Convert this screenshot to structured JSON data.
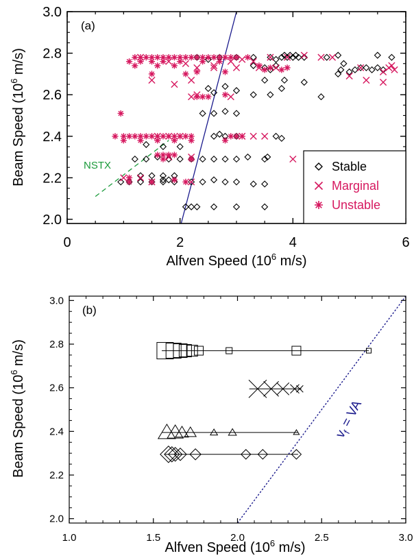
{
  "colors": {
    "stable": "#000000",
    "marginal": "#d6185f",
    "unstable": "#d6185f",
    "nstx": "#1a9a3a",
    "vf_line": "#1a1a8c",
    "axis": "#000000"
  },
  "chart_data": [
    {
      "panel": "(a)",
      "type": "scatter",
      "xlabel": "Alfven Speed (10",
      "xlabel_sup": "6",
      "xlabel_tail": " m/s)",
      "ylabel": "Beam Speed (10",
      "ylabel_sup": "6",
      "ylabel_tail": " m/s)",
      "xlim": [
        0,
        6
      ],
      "ylim": [
        1.98,
        3.0
      ],
      "xticks": [
        "0",
        "2",
        "4",
        "6"
      ],
      "yticks": [
        "2.0",
        "2.2",
        "2.4",
        "2.6",
        "2.8",
        "3.0"
      ],
      "legend": {
        "placement": "bottom-right",
        "entries": [
          "Stable",
          "Marginal",
          "Unstable"
        ]
      },
      "annotation": "NSTX",
      "nstx_line": [
        [
          0.5,
          2.11
        ],
        [
          1.8,
          2.38
        ]
      ],
      "vf_line": [
        [
          2.02,
          1.98
        ],
        [
          3.0,
          3.0
        ]
      ],
      "series": [
        {
          "name": "Stable",
          "marker": "diamond",
          "points": [
            [
              2.3,
              2.78
            ],
            [
              2.5,
              2.77
            ],
            [
              2.7,
              2.78
            ],
            [
              3.0,
              2.78
            ],
            [
              3.3,
              2.78
            ],
            [
              3.6,
              2.78
            ],
            [
              3.7,
              2.77
            ],
            [
              3.8,
              2.78
            ],
            [
              3.85,
              2.79
            ],
            [
              3.9,
              2.78
            ],
            [
              3.95,
              2.79
            ],
            [
              4.0,
              2.78
            ],
            [
              4.05,
              2.79
            ],
            [
              4.1,
              2.78
            ],
            [
              4.2,
              2.78
            ],
            [
              4.6,
              2.78
            ],
            [
              4.8,
              2.79
            ],
            [
              4.9,
              2.75
            ],
            [
              5.0,
              2.71
            ],
            [
              5.1,
              2.72
            ],
            [
              5.2,
              2.73
            ],
            [
              5.3,
              2.73
            ],
            [
              5.4,
              2.72
            ],
            [
              5.5,
              2.73
            ],
            [
              5.6,
              2.72
            ],
            [
              5.75,
              2.78
            ],
            [
              5.5,
              2.79
            ],
            [
              3.3,
              2.74
            ],
            [
              3.5,
              2.73
            ],
            [
              3.6,
              2.72
            ],
            [
              3.7,
              2.74
            ],
            [
              3.5,
              2.67
            ],
            [
              3.85,
              2.67
            ],
            [
              4.2,
              2.66
            ],
            [
              2.5,
              2.63
            ],
            [
              2.6,
              2.61
            ],
            [
              2.8,
              2.64
            ],
            [
              3.0,
              2.62
            ],
            [
              3.3,
              2.6
            ],
            [
              3.6,
              2.6
            ],
            [
              3.8,
              2.63
            ],
            [
              4.8,
              2.7
            ],
            [
              4.85,
              2.72
            ],
            [
              4.5,
              2.59
            ],
            [
              2.4,
              2.51
            ],
            [
              2.6,
              2.51
            ],
            [
              2.8,
              2.52
            ],
            [
              3.0,
              2.51
            ],
            [
              2.6,
              2.4
            ],
            [
              2.7,
              2.41
            ],
            [
              2.8,
              2.4
            ],
            [
              3.0,
              2.4
            ],
            [
              3.7,
              2.4
            ],
            [
              3.8,
              2.39
            ],
            [
              1.4,
              2.36
            ],
            [
              1.7,
              2.35
            ],
            [
              2.0,
              2.35
            ],
            [
              1.2,
              2.29
            ],
            [
              1.4,
              2.29
            ],
            [
              1.6,
              2.3
            ],
            [
              1.8,
              2.29
            ],
            [
              2.0,
              2.29
            ],
            [
              2.2,
              2.29
            ],
            [
              2.4,
              2.29
            ],
            [
              2.6,
              2.29
            ],
            [
              2.8,
              2.29
            ],
            [
              3.0,
              2.29
            ],
            [
              3.2,
              2.3
            ],
            [
              3.5,
              2.29
            ],
            [
              3.55,
              2.3
            ],
            [
              0.95,
              2.18
            ],
            [
              1.1,
              2.18
            ],
            [
              1.3,
              2.18
            ],
            [
              1.5,
              2.18
            ],
            [
              1.7,
              2.18
            ],
            [
              1.9,
              2.18
            ],
            [
              2.2,
              2.18
            ],
            [
              2.4,
              2.18
            ],
            [
              2.6,
              2.19
            ],
            [
              2.8,
              2.18
            ],
            [
              3.0,
              2.18
            ],
            [
              3.3,
              2.17
            ],
            [
              3.5,
              2.17
            ],
            [
              1.3,
              2.21
            ],
            [
              1.5,
              2.21
            ],
            [
              1.7,
              2.21
            ],
            [
              1.9,
              2.21
            ],
            [
              1.7,
              2.19
            ],
            [
              1.8,
              2.19
            ],
            [
              2.1,
              2.06
            ],
            [
              2.2,
              2.06
            ],
            [
              2.3,
              2.06
            ],
            [
              2.6,
              2.06
            ],
            [
              3.0,
              2.06
            ],
            [
              3.5,
              2.06
            ]
          ]
        },
        {
          "name": "Marginal",
          "marker": "x",
          "points": [
            [
              1.3,
              2.78
            ],
            [
              1.8,
              2.76
            ],
            [
              2.1,
              2.75
            ],
            [
              2.3,
              2.73
            ],
            [
              2.6,
              2.74
            ],
            [
              2.9,
              2.76
            ],
            [
              3.1,
              2.77
            ],
            [
              3.3,
              2.76
            ],
            [
              3.6,
              2.78
            ],
            [
              4.5,
              2.78
            ],
            [
              4.7,
              2.78
            ],
            [
              5.2,
              2.73
            ],
            [
              5.6,
              2.71
            ],
            [
              5.7,
              2.73
            ],
            [
              5.8,
              2.72
            ],
            [
              5.75,
              2.74
            ],
            [
              5.0,
              2.69
            ],
            [
              5.3,
              2.67
            ],
            [
              5.6,
              2.66
            ],
            [
              2.9,
              2.59
            ],
            [
              2.2,
              2.59
            ],
            [
              2.3,
              2.6
            ],
            [
              3.1,
              2.4
            ],
            [
              3.3,
              2.4
            ],
            [
              3.5,
              2.4
            ],
            [
              1.6,
              2.4
            ],
            [
              1.8,
              2.4
            ],
            [
              2.0,
              2.4
            ],
            [
              1.8,
              2.3
            ],
            [
              2.2,
              2.3
            ],
            [
              4.0,
              2.29
            ],
            [
              1.0,
              2.2
            ],
            [
              1.3,
              2.2
            ],
            [
              1.5,
              2.18
            ],
            [
              2.2,
              2.18
            ],
            [
              1.5,
              2.67
            ],
            [
              1.9,
              2.65
            ],
            [
              2.2,
              2.67
            ],
            [
              2.6,
              2.73
            ],
            [
              3.0,
              2.73
            ],
            [
              3.4,
              2.73
            ],
            [
              3.7,
              2.73
            ],
            [
              3.9,
              2.78
            ],
            [
              4.2,
              2.79
            ]
          ]
        },
        {
          "name": "Unstable",
          "marker": "asterisk",
          "points": [
            [
              1.2,
              2.78
            ],
            [
              1.3,
              2.78
            ],
            [
              1.4,
              2.78
            ],
            [
              1.5,
              2.78
            ],
            [
              1.6,
              2.78
            ],
            [
              1.7,
              2.78
            ],
            [
              1.8,
              2.78
            ],
            [
              1.9,
              2.78
            ],
            [
              2.0,
              2.78
            ],
            [
              2.1,
              2.78
            ],
            [
              2.2,
              2.78
            ],
            [
              2.3,
              2.78
            ],
            [
              2.4,
              2.78
            ],
            [
              2.5,
              2.78
            ],
            [
              2.6,
              2.78
            ],
            [
              2.7,
              2.78
            ],
            [
              2.8,
              2.78
            ],
            [
              2.9,
              2.78
            ],
            [
              3.0,
              2.78
            ],
            [
              3.2,
              2.78
            ],
            [
              1.1,
              2.76
            ],
            [
              1.3,
              2.76
            ],
            [
              1.5,
              2.76
            ],
            [
              1.7,
              2.76
            ],
            [
              2.0,
              2.76
            ],
            [
              2.4,
              2.76
            ],
            [
              2.7,
              2.76
            ],
            [
              1.2,
              2.74
            ],
            [
              1.6,
              2.74
            ],
            [
              1.9,
              2.74
            ],
            [
              3.4,
              2.74
            ],
            [
              3.6,
              2.73
            ],
            [
              3.8,
              2.72
            ],
            [
              3.9,
              2.73
            ],
            [
              3.5,
              2.72
            ],
            [
              2.3,
              2.71
            ],
            [
              2.8,
              2.71
            ],
            [
              1.5,
              2.7
            ],
            [
              2.1,
              2.7
            ],
            [
              2.3,
              2.59
            ],
            [
              2.4,
              2.59
            ],
            [
              2.5,
              2.59
            ],
            [
              2.8,
              2.6
            ],
            [
              0.95,
              2.51
            ],
            [
              0.85,
              2.4
            ],
            [
              1.0,
              2.4
            ],
            [
              1.1,
              2.4
            ],
            [
              1.2,
              2.4
            ],
            [
              1.3,
              2.4
            ],
            [
              1.4,
              2.4
            ],
            [
              1.5,
              2.4
            ],
            [
              1.6,
              2.4
            ],
            [
              1.7,
              2.4
            ],
            [
              1.8,
              2.4
            ],
            [
              1.9,
              2.4
            ],
            [
              2.0,
              2.4
            ],
            [
              2.1,
              2.4
            ],
            [
              2.2,
              2.4
            ],
            [
              2.9,
              2.4
            ],
            [
              3.0,
              2.4
            ],
            [
              3.1,
              2.4
            ],
            [
              1.0,
              2.38
            ],
            [
              1.3,
              2.38
            ],
            [
              1.6,
              2.38
            ],
            [
              1.9,
              2.38
            ],
            [
              2.2,
              2.38
            ],
            [
              2.8,
              2.38
            ],
            [
              1.6,
              2.31
            ],
            [
              1.7,
              2.31
            ],
            [
              1.8,
              2.31
            ],
            [
              1.9,
              2.31
            ],
            [
              1.7,
              2.29
            ],
            [
              2.2,
              2.29
            ],
            [
              1.1,
              2.18
            ],
            [
              1.5,
              2.18
            ],
            [
              1.9,
              2.19
            ],
            [
              2.1,
              2.18
            ],
            [
              1.1,
              2.2
            ]
          ]
        }
      ]
    },
    {
      "panel": "(b)",
      "type": "scatter",
      "xlabel": "Alfven Speed (10",
      "xlabel_sup": "6",
      "xlabel_tail": " m/s)",
      "ylabel": "Beam Speed (10",
      "ylabel_sup": "6",
      "ylabel_tail": " m/s)",
      "xlim": [
        1.0,
        3.0
      ],
      "ylim": [
        1.98,
        3.02
      ],
      "xticks": [
        "1.0",
        "1.5",
        "2.0",
        "2.5",
        "3.0"
      ],
      "yticks": [
        "2.0",
        "2.2",
        "2.4",
        "2.6",
        "2.8",
        "3.0"
      ],
      "annotation": "v",
      "annotation_sub": "f",
      "annotation_tail": " = VA",
      "vf_line": [
        [
          2.0,
          1.98
        ],
        [
          3.0,
          3.02
        ]
      ],
      "series": [
        {
          "marker": "square",
          "y": 2.77,
          "line": [
            1.55,
            2.78
          ],
          "points": [
            [
              1.57,
              12
            ],
            [
              1.62,
              11
            ],
            [
              1.66,
              10
            ],
            [
              1.69,
              9
            ],
            [
              1.73,
              8
            ],
            [
              1.77,
              6.5
            ],
            [
              1.95,
              4.5
            ],
            [
              2.35,
              6.5
            ],
            [
              2.78,
              3.5
            ]
          ]
        },
        {
          "marker": "x",
          "y": 2.595,
          "line": [
            2.07,
            2.38
          ],
          "points": [
            [
              2.12,
              13
            ],
            [
              2.2,
              11
            ],
            [
              2.27,
              9
            ],
            [
              2.34,
              6.5
            ],
            [
              2.37,
              5
            ]
          ]
        },
        {
          "marker": "triangle",
          "y": 2.395,
          "line": [
            1.55,
            2.36
          ],
          "points": [
            [
              1.58,
              12
            ],
            [
              1.63,
              11
            ],
            [
              1.67,
              9
            ],
            [
              1.72,
              8
            ],
            [
              1.86,
              5
            ],
            [
              1.97,
              5.5
            ],
            [
              2.35,
              4
            ]
          ]
        },
        {
          "marker": "diamond",
          "y": 2.295,
          "line": [
            1.57,
            2.36
          ],
          "points": [
            [
              1.59,
              12
            ],
            [
              1.61,
              11
            ],
            [
              1.63,
              10
            ],
            [
              1.66,
              9
            ],
            [
              1.75,
              8
            ],
            [
              2.05,
              7
            ],
            [
              2.15,
              7
            ],
            [
              2.35,
              7
            ]
          ]
        }
      ]
    }
  ]
}
